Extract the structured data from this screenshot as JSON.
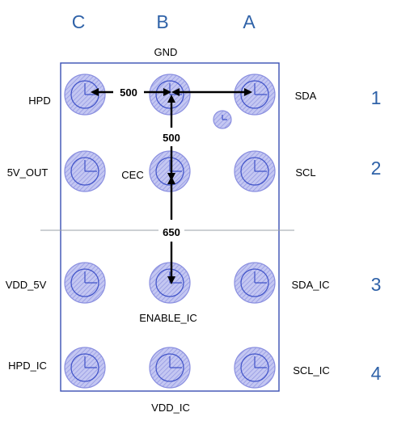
{
  "columns": [
    "C",
    "B",
    "A"
  ],
  "rows": [
    "1",
    "2",
    "3",
    "4"
  ],
  "pins": {
    "top": "GND",
    "bottom": "VDD_IC",
    "row1_left": "HPD",
    "row1_right": "SDA",
    "row2_left": "5V_OUT",
    "row2_center": "CEC",
    "row2_right": "SCL",
    "row3_left": "VDD_5V",
    "row3_center": "ENABLE_IC",
    "row3_right": "SDA_IC",
    "row4_left": "HPD_IC",
    "row4_right": "SCL_IC"
  },
  "dimensions": {
    "horizontal_pitch": "500",
    "vertical_pitch": "500",
    "center_gap": "650"
  },
  "colors": {
    "label_blue": "#2f62a8",
    "ball_fill": "#b9bdf0",
    "ball_stroke": "#3f52c8",
    "outline": "#3a4fb4"
  },
  "icons": {
    "pin1_marker": "small-circle-icon"
  }
}
